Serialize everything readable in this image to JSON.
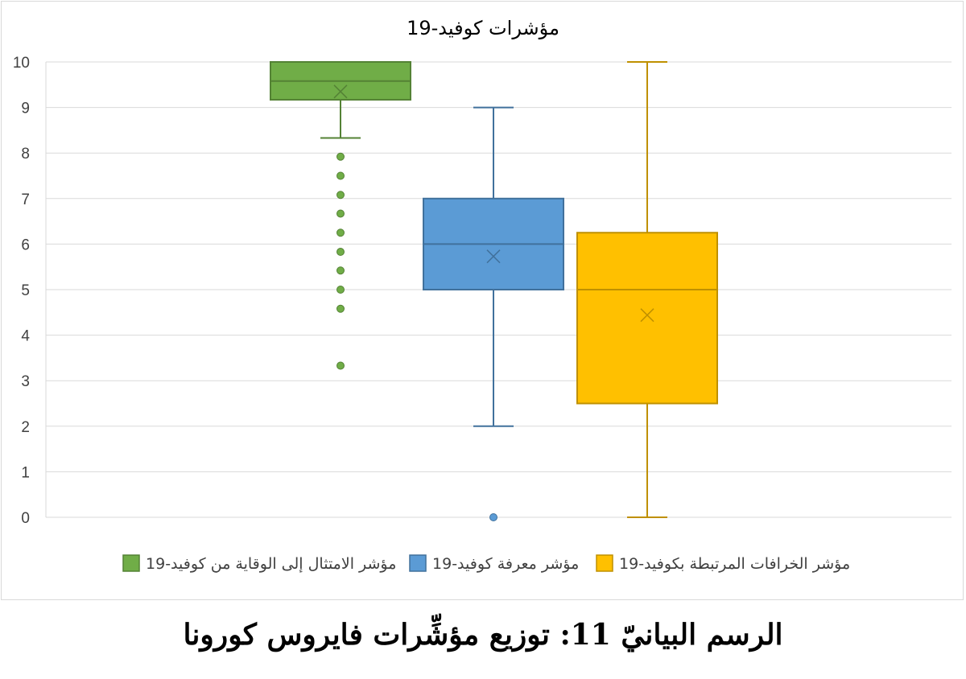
{
  "caption": "الرسم البيانيّ 11: توزيع مؤشِّرات فايروس كورونا",
  "chart_data": {
    "type": "box",
    "title": "مؤشرات كوفيد-19",
    "ylim": [
      0,
      10
    ],
    "yticks": [
      0,
      1,
      2,
      3,
      4,
      5,
      6,
      7,
      8,
      9,
      10
    ],
    "grid": true,
    "legend_position": "bottom",
    "series": [
      {
        "name": "مؤشر الامتثال إلى الوقاية من كوفيد-19",
        "color": "#70ad47",
        "stroke": "#548235",
        "min": 8.33,
        "q1": 9.17,
        "median": 9.58,
        "q3": 10,
        "max": 10,
        "mean": 9.35,
        "outliers": [
          7.92,
          7.5,
          7.08,
          6.67,
          6.25,
          5.83,
          5.42,
          5.0,
          4.58,
          3.33
        ]
      },
      {
        "name": "مؤشر معرفة كوفيد-19",
        "color": "#5b9bd5",
        "stroke": "#41719c",
        "min": 2,
        "q1": 5,
        "median": 6,
        "q3": 7,
        "max": 9,
        "mean": 5.73,
        "outliers": [
          0
        ]
      },
      {
        "name": "مؤشر الخرافات المرتبطة بكوفيد-19",
        "color": "#ffc000",
        "stroke": "#bf9000",
        "min": 0,
        "q1": 2.5,
        "median": 5,
        "q3": 6.25,
        "max": 10,
        "mean": 4.44,
        "outliers": []
      }
    ]
  }
}
